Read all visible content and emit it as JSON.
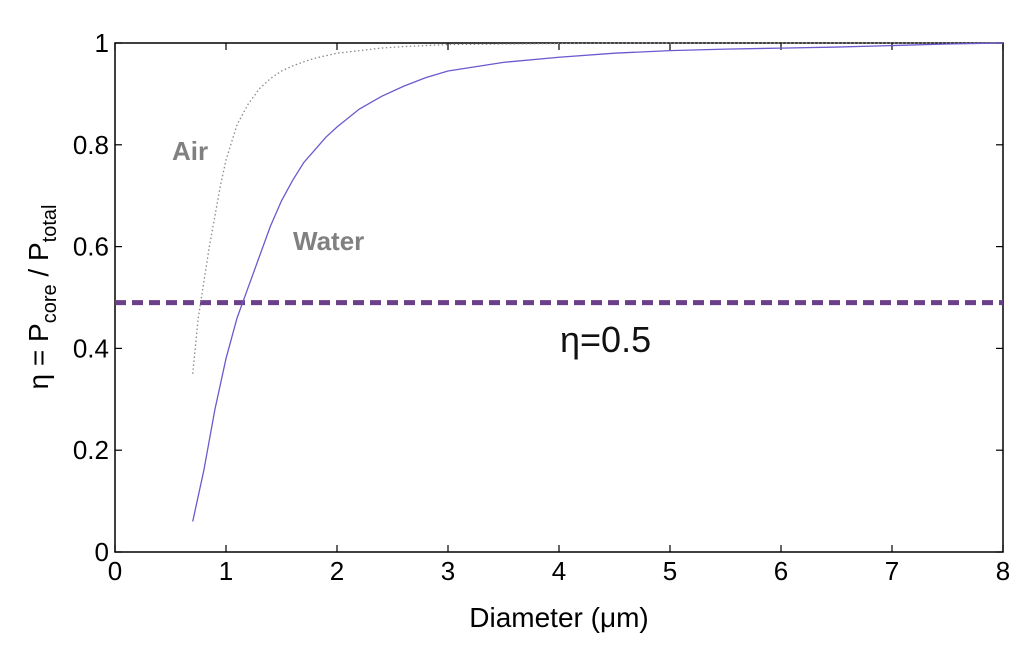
{
  "chart_data": {
    "type": "line",
    "xlabel": "Diameter (μm)",
    "ylabel": {
      "prefix": "η = P",
      "sub1": "core",
      "mid": " / P",
      "sub2": "total"
    },
    "xlim": [
      0,
      8
    ],
    "ylim": [
      0,
      1
    ],
    "xticks": [
      "0",
      "1",
      "2",
      "3",
      "4",
      "5",
      "6",
      "7",
      "8"
    ],
    "yticks": [
      "0",
      "0.2",
      "0.4",
      "0.6",
      "0.8",
      "1"
    ],
    "grid": false,
    "colors": {
      "air": "#8a8a8a",
      "water": "#6a5acd",
      "threshold": "#6b3f8a"
    },
    "series": [
      {
        "name": "Air",
        "style": "dotted",
        "x": [
          0.7,
          0.75,
          0.8,
          0.85,
          0.9,
          0.95,
          1.0,
          1.1,
          1.2,
          1.3,
          1.4,
          1.5,
          1.6,
          1.7,
          1.8,
          1.9,
          2.0,
          2.2,
          2.4,
          2.6,
          2.8,
          3.0,
          3.5,
          4.0,
          5.0,
          8.0
        ],
        "y": [
          0.35,
          0.46,
          0.53,
          0.6,
          0.66,
          0.72,
          0.77,
          0.84,
          0.88,
          0.91,
          0.93,
          0.945,
          0.955,
          0.963,
          0.97,
          0.975,
          0.98,
          0.985,
          0.99,
          0.993,
          0.995,
          0.997,
          0.998,
          0.999,
          1.0,
          1.0
        ]
      },
      {
        "name": "Water",
        "style": "solid",
        "x": [
          0.7,
          0.8,
          0.9,
          1.0,
          1.1,
          1.2,
          1.3,
          1.4,
          1.5,
          1.6,
          1.7,
          1.8,
          1.9,
          2.0,
          2.2,
          2.4,
          2.6,
          2.8,
          3.0,
          3.5,
          4.0,
          4.5,
          5.0,
          5.5,
          6.0,
          6.5,
          7.0,
          7.5,
          8.0
        ],
        "y": [
          0.06,
          0.16,
          0.28,
          0.38,
          0.46,
          0.52,
          0.58,
          0.64,
          0.69,
          0.73,
          0.765,
          0.79,
          0.815,
          0.835,
          0.87,
          0.895,
          0.915,
          0.932,
          0.945,
          0.962,
          0.972,
          0.98,
          0.985,
          0.988,
          0.99,
          0.992,
          0.995,
          0.998,
          1.0
        ]
      }
    ],
    "threshold": {
      "y": 0.49,
      "style": "dashed"
    },
    "annotations": {
      "air_label": "Air",
      "water_label": "Water",
      "eta_label": "η=0.5"
    }
  }
}
